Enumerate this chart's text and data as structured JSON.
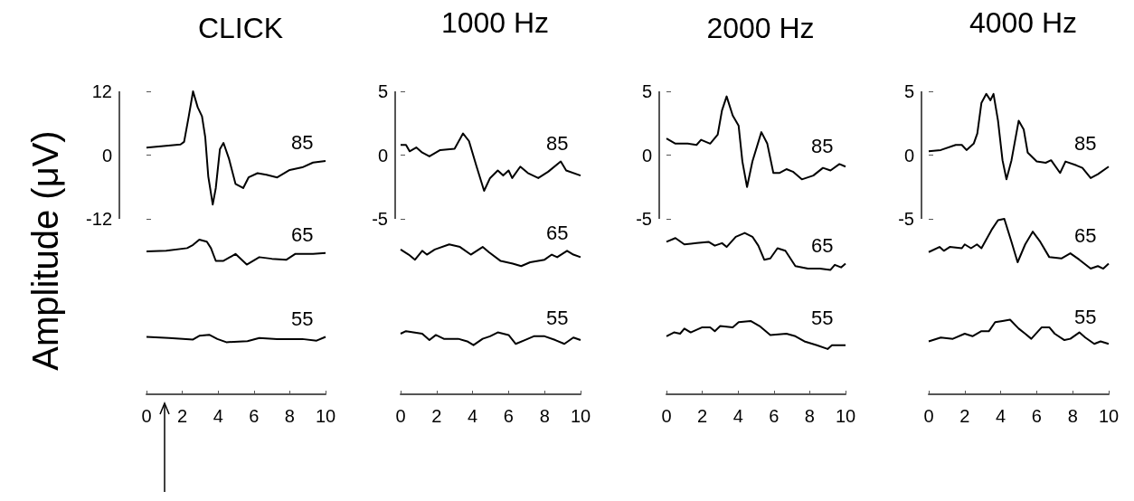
{
  "chart_data": [
    {
      "type": "line",
      "title": "CLICK",
      "ylabel": "Amplitude (μV)",
      "xlim": [
        0,
        10
      ],
      "xticks": [
        0,
        2,
        4,
        6,
        8,
        10
      ],
      "ylim": [
        -45,
        12
      ],
      "yticks": [
        -12,
        0,
        12
      ],
      "grid": false,
      "legend": false,
      "marker": "none",
      "series": [
        {
          "name": "85",
          "color": "#000000",
          "x": [
            0,
            1.9,
            2.1,
            2.36,
            2.6,
            2.86,
            3.1,
            3.28,
            3.45,
            3.7,
            3.87,
            4.1,
            4.3,
            4.6,
            4.97,
            5.4,
            5.7,
            6.2,
            6.7,
            7.3,
            8.0,
            8.7,
            9.3,
            10
          ],
          "values": [
            1.4,
            2.0,
            2.5,
            7.3,
            12,
            9.0,
            7.3,
            3.4,
            -4.0,
            -9.3,
            -6.2,
            1.1,
            2.3,
            -0.6,
            -5.4,
            -6.2,
            -4.2,
            -3.4,
            -3.7,
            -4.2,
            -2.8,
            -2.3,
            -1.4,
            -1.1
          ]
        },
        {
          "name": "65",
          "color": "#000000",
          "x": [
            0,
            1.1,
            2.27,
            2.6,
            2.95,
            3.37,
            3.6,
            3.87,
            4.3,
            4.97,
            5.6,
            6.3,
            7.0,
            7.8,
            8.3,
            9.3,
            10
          ],
          "values": [
            -18.1,
            -18.0,
            -17.5,
            -16.9,
            -15.9,
            -16.3,
            -17.5,
            -19.9,
            -19.9,
            -18.6,
            -20.6,
            -19.2,
            -19.5,
            -19.7,
            -18.6,
            -18.6,
            -18.4
          ]
        },
        {
          "name": "55",
          "color": "#000000",
          "x": [
            0,
            1.26,
            2.6,
            2.95,
            3.5,
            3.96,
            4.46,
            5.64,
            6.3,
            7.3,
            8.7,
            9.5,
            10
          ],
          "values": [
            -34.2,
            -34.4,
            -34.7,
            -34.0,
            -33.8,
            -34.6,
            -35.2,
            -35.0,
            -34.4,
            -34.6,
            -34.6,
            -34.9,
            -34.2
          ]
        }
      ]
    },
    {
      "type": "line",
      "title": "1000 Hz",
      "xlim": [
        0,
        10
      ],
      "xticks": [
        0,
        2,
        4,
        6,
        8,
        10
      ],
      "ylim": [
        -18.75,
        5
      ],
      "yticks": [
        -5,
        0,
        5
      ],
      "grid": false,
      "legend": false,
      "marker": "none",
      "series": [
        {
          "name": "85",
          "color": "#000000",
          "x": [
            0,
            0.3,
            0.5,
            0.87,
            1.2,
            1.6,
            2.2,
            3.0,
            3.47,
            3.8,
            4.2,
            4.64,
            4.97,
            5.4,
            5.7,
            6.0,
            6.2,
            6.65,
            7.07,
            7.65,
            8.2,
            8.9,
            9.2,
            10
          ],
          "values": [
            0.8,
            0.8,
            0.3,
            0.6,
            0.2,
            -0.1,
            0.4,
            0.5,
            1.7,
            1.1,
            -0.8,
            -2.8,
            -1.8,
            -1.2,
            -1.6,
            -1.2,
            -1.8,
            -0.9,
            -1.4,
            -1.8,
            -1.3,
            -0.5,
            -1.2,
            -1.6
          ]
        },
        {
          "name": "65",
          "color": "#000000",
          "x": [
            0,
            0.45,
            0.8,
            1.2,
            1.46,
            1.9,
            2.7,
            3.3,
            3.9,
            4.56,
            4.9,
            5.56,
            6.23,
            6.7,
            7.2,
            8.0,
            8.4,
            8.7,
            9.25,
            9.6,
            10
          ],
          "values": [
            -7.4,
            -7.8,
            -8.2,
            -7.5,
            -7.8,
            -7.4,
            -7.0,
            -7.2,
            -7.8,
            -7.2,
            -7.6,
            -8.3,
            -8.5,
            -8.7,
            -8.4,
            -8.2,
            -7.8,
            -8.0,
            -7.5,
            -7.8,
            -8.0
          ]
        },
        {
          "name": "55",
          "color": "#000000",
          "x": [
            0,
            0.3,
            1.2,
            1.6,
            1.96,
            2.4,
            3.2,
            3.7,
            4.05,
            4.56,
            4.97,
            5.4,
            6.0,
            6.4,
            6.9,
            7.4,
            8.0,
            8.6,
            9.1,
            9.6,
            10
          ],
          "values": [
            -14.0,
            -13.8,
            -14.0,
            -14.5,
            -14.1,
            -14.4,
            -14.4,
            -14.6,
            -14.9,
            -14.4,
            -14.2,
            -13.9,
            -14.1,
            -14.8,
            -14.5,
            -14.2,
            -14.2,
            -14.5,
            -14.8,
            -14.3,
            -14.5
          ]
        }
      ]
    },
    {
      "type": "line",
      "title": "2000 Hz",
      "xlim": [
        0,
        10
      ],
      "xticks": [
        0,
        2,
        4,
        6,
        8,
        10
      ],
      "ylim": [
        -18.75,
        5
      ],
      "yticks": [
        -5,
        0,
        5
      ],
      "grid": false,
      "legend": false,
      "marker": "none",
      "series": [
        {
          "name": "85",
          "color": "#000000",
          "x": [
            0,
            0.5,
            1.18,
            1.68,
            1.93,
            2.44,
            2.86,
            3.1,
            3.36,
            3.7,
            4.03,
            4.24,
            4.5,
            4.8,
            5.3,
            5.63,
            5.97,
            6.3,
            6.7,
            7.06,
            7.56,
            8.2,
            8.74,
            9.16,
            9.66,
            10
          ],
          "values": [
            1.3,
            0.9,
            0.9,
            0.8,
            1.2,
            0.9,
            1.6,
            3.5,
            4.6,
            3.1,
            2.3,
            -0.5,
            -2.5,
            -0.5,
            1.8,
            0.9,
            -1.4,
            -1.4,
            -1.1,
            -1.3,
            -1.9,
            -1.6,
            -1.0,
            -1.2,
            -0.7,
            -0.9
          ]
        },
        {
          "name": "65",
          "color": "#000000",
          "x": [
            0,
            0.5,
            1.0,
            1.68,
            2.35,
            2.7,
            3.1,
            3.36,
            3.87,
            4.37,
            4.8,
            5.13,
            5.46,
            5.8,
            6.2,
            6.64,
            7.2,
            7.9,
            8.57,
            9.16,
            9.4,
            9.75,
            10
          ],
          "values": [
            -6.8,
            -6.5,
            -7.0,
            -6.9,
            -6.8,
            -7.1,
            -6.9,
            -7.2,
            -6.4,
            -6.1,
            -6.4,
            -7.1,
            -8.2,
            -8.1,
            -7.3,
            -7.5,
            -8.7,
            -8.9,
            -8.9,
            -9.0,
            -8.6,
            -8.8,
            -8.5
          ]
        },
        {
          "name": "55",
          "color": "#000000",
          "x": [
            0,
            0.42,
            0.76,
            1.0,
            1.35,
            2.0,
            2.44,
            2.7,
            3.0,
            3.7,
            4.03,
            4.7,
            5.2,
            5.8,
            6.7,
            7.2,
            7.7,
            8.4,
            9.0,
            9.24,
            10
          ],
          "values": [
            -14.2,
            -13.9,
            -14.0,
            -13.6,
            -13.9,
            -13.5,
            -13.5,
            -13.8,
            -13.4,
            -13.5,
            -13.1,
            -13.0,
            -13.4,
            -14.1,
            -14.0,
            -14.2,
            -14.6,
            -14.9,
            -15.2,
            -14.9,
            -14.9
          ]
        }
      ]
    },
    {
      "type": "line",
      "title": "4000 Hz",
      "xlim": [
        0,
        10
      ],
      "xticks": [
        0,
        2,
        4,
        6,
        8,
        10
      ],
      "ylim": [
        -18.75,
        5
      ],
      "yticks": [
        -5,
        0,
        5
      ],
      "grid": false,
      "legend": false,
      "marker": "none",
      "series": [
        {
          "name": "85",
          "color": "#000000",
          "x": [
            0,
            0.67,
            1.5,
            1.84,
            2.1,
            2.5,
            2.7,
            2.93,
            3.2,
            3.43,
            3.6,
            3.85,
            4.1,
            4.32,
            4.6,
            5.0,
            5.28,
            5.5,
            6.0,
            6.5,
            6.8,
            7.3,
            7.6,
            8.2,
            8.54,
            9.0,
            9.4,
            10
          ],
          "values": [
            0.3,
            0.4,
            0.8,
            0.8,
            0.4,
            0.9,
            1.7,
            4.1,
            4.8,
            4.3,
            4.8,
            2.7,
            -0.4,
            -1.9,
            -0.4,
            2.7,
            2.0,
            0.2,
            -0.5,
            -0.6,
            -0.4,
            -1.4,
            -0.5,
            -0.8,
            -1.0,
            -1.8,
            -1.5,
            -0.9
          ]
        },
        {
          "name": "65",
          "color": "#000000",
          "x": [
            0,
            0.6,
            0.84,
            1.17,
            1.84,
            2.0,
            2.35,
            2.68,
            2.93,
            3.52,
            3.85,
            4.2,
            4.6,
            4.94,
            5.36,
            5.78,
            6.2,
            6.7,
            7.37,
            7.87,
            8.37,
            9.0,
            9.4,
            9.7,
            10
          ],
          "values": [
            -7.6,
            -7.2,
            -7.5,
            -7.2,
            -7.3,
            -7.0,
            -7.3,
            -7.0,
            -7.3,
            -5.8,
            -5.1,
            -5.0,
            -6.8,
            -8.4,
            -7.0,
            -6.0,
            -6.8,
            -8.0,
            -8.1,
            -7.7,
            -8.2,
            -8.9,
            -8.7,
            -8.9,
            -8.5
          ]
        },
        {
          "name": "55",
          "color": "#000000",
          "x": [
            0,
            0.67,
            1.34,
            2.0,
            2.43,
            2.93,
            3.35,
            3.69,
            4.1,
            4.52,
            5.0,
            5.36,
            5.7,
            6.28,
            6.7,
            7.0,
            7.54,
            7.87,
            8.37,
            8.7,
            9.2,
            9.55,
            10
          ],
          "values": [
            -14.6,
            -14.3,
            -14.4,
            -14.0,
            -14.2,
            -13.8,
            -13.8,
            -13.1,
            -13.0,
            -12.9,
            -13.6,
            -14.0,
            -14.4,
            -13.5,
            -13.5,
            -14.0,
            -14.5,
            -14.4,
            -13.9,
            -14.3,
            -14.8,
            -14.6,
            -14.8
          ]
        }
      ]
    }
  ]
}
